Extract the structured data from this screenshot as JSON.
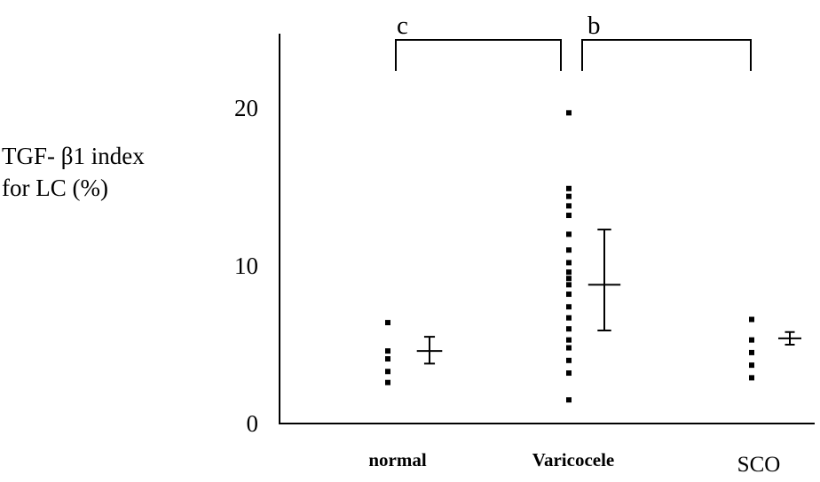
{
  "chart_data": {
    "type": "scatter",
    "ylabel_lines": [
      "TGF- β1 index",
      "for LC (%)"
    ],
    "categories": [
      "normal",
      "Varicocele",
      "SCO"
    ],
    "yticks": [
      0,
      10,
      20
    ],
    "ylim": [
      0,
      24
    ],
    "grid": false,
    "series": [
      {
        "category": "normal",
        "points": [
          6.4,
          4.6,
          4.1,
          3.3,
          2.6
        ],
        "mean": 4.6,
        "err_low": 3.8,
        "err_high": 5.5
      },
      {
        "category": "Varicocele",
        "points": [
          19.7,
          14.9,
          14.4,
          13.8,
          13.2,
          12.0,
          11.0,
          10.2,
          9.6,
          9.2,
          8.8,
          8.2,
          7.4,
          6.7,
          6.0,
          5.3,
          4.8,
          4.0,
          3.2,
          1.5
        ],
        "mean": 8.8,
        "err_low": 5.9,
        "err_high": 12.3
      },
      {
        "category": "SCO",
        "points": [
          6.6,
          5.3,
          4.5,
          3.7,
          2.9
        ],
        "mean": 5.4,
        "err_low": 5.0,
        "err_high": 5.8
      }
    ],
    "brackets": [
      {
        "label": "c",
        "from": "normal",
        "to": "Varicocele"
      },
      {
        "label": "b",
        "from": "Varicocele",
        "to": "SCO"
      }
    ]
  }
}
